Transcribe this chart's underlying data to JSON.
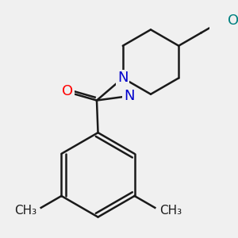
{
  "bg_color": "#f0f0f0",
  "bond_color": "#1a1a1a",
  "bond_width": 1.8,
  "atom_colors": {
    "O": "#ff0000",
    "N": "#0000cc",
    "OH": "#008080",
    "C": "#1a1a1a"
  },
  "font_size_atoms": 13,
  "font_size_methyl": 11
}
